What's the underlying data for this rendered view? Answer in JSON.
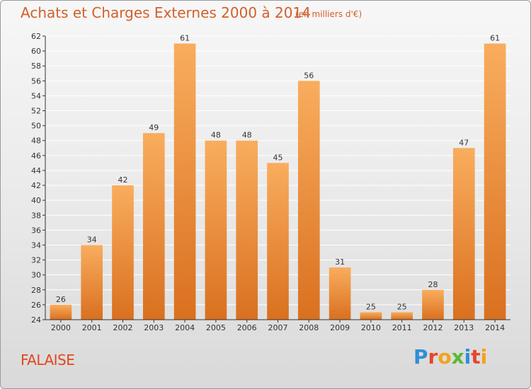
{
  "title": "Achats et Charges Externes 2000 à 2014",
  "unit_note": "(en milliers d'€)",
  "location": "FALAISE",
  "brand": {
    "name": "Proxiti",
    "letters": [
      "P",
      "r",
      "o",
      "x",
      "i",
      "t",
      "i"
    ],
    "colors": [
      "#2f8fd8",
      "#e8452c",
      "#f4a21c",
      "#5bb833",
      "#2f8fd8",
      "#e8452c",
      "#f4a21c"
    ]
  },
  "colors": {
    "bar_light": "#f9ad5e",
    "bar_dark": "#d9701f",
    "axis": "#333333",
    "grid": "#ffffff",
    "title": "#d2602a"
  },
  "chart_data": {
    "type": "bar",
    "title": "Achats et Charges Externes 2000 à 2014",
    "categories": [
      "2000",
      "2001",
      "2002",
      "2003",
      "2004",
      "2005",
      "2006",
      "2007",
      "2008",
      "2009",
      "2010",
      "2011",
      "2012",
      "2013",
      "2014"
    ],
    "values": [
      26,
      34,
      42,
      49,
      61,
      48,
      48,
      45,
      56,
      31,
      25,
      25,
      28,
      47,
      61
    ],
    "ylim": [
      24,
      62
    ],
    "yticks": [
      24,
      26,
      28,
      30,
      32,
      34,
      36,
      38,
      40,
      42,
      44,
      46,
      48,
      50,
      52,
      54,
      56,
      58,
      60,
      62
    ],
    "grid": true,
    "data_labels": true
  }
}
